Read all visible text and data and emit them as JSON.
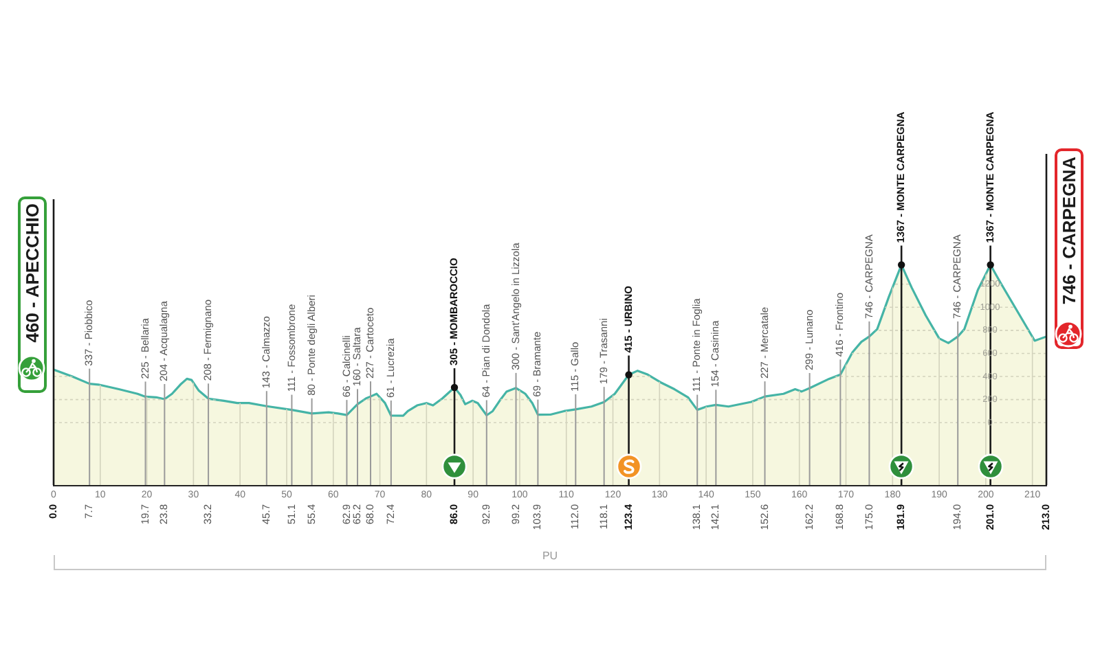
{
  "chart_data": {
    "type": "area",
    "color": "#45b4a6",
    "x": [
      0,
      4,
      7.7,
      9.6,
      14,
      18,
      19.7,
      22,
      23.8,
      25.4,
      27.2,
      28.6,
      29.6,
      31.1,
      33.2,
      36.5,
      39.4,
      41.9,
      45.7,
      51.1,
      55.4,
      59,
      61,
      62.9,
      65.2,
      67,
      68,
      69.3,
      71.1,
      72.4,
      75,
      76,
      78,
      80,
      81.4,
      83.4,
      86,
      87.3,
      88.3,
      89.8,
      91,
      92.9,
      94.2,
      95.7,
      97.2,
      99.2,
      101.2,
      102.7,
      103.9,
      106.6,
      109.5,
      112,
      115.4,
      118.1,
      120.4,
      123.4,
      125.3,
      127.3,
      130.2,
      133.2,
      136.1,
      138.1,
      140.1,
      142.1,
      144.8,
      149.7,
      152.6,
      156.6,
      159.1,
      160.5,
      162.2,
      166.4,
      168.8,
      171.4,
      173.3,
      175,
      176.7,
      179.2,
      181.9,
      184.1,
      187.1,
      190,
      192,
      194,
      195.4,
      198.3,
      201,
      203.2,
      206.7,
      210.5,
      213
    ],
    "values": [
      460,
      400,
      337,
      330,
      290,
      250,
      225,
      220,
      204,
      250,
      330,
      380,
      370,
      280,
      208,
      190,
      170,
      170,
      143,
      111,
      80,
      90,
      80,
      66,
      160,
      210,
      227,
      250,
      170,
      61,
      60,
      100,
      150,
      170,
      150,
      210,
      305,
      240,
      160,
      190,
      170,
      64,
      100,
      190,
      270,
      300,
      250,
      170,
      69,
      70,
      100,
      115,
      140,
      179,
      250,
      415,
      450,
      420,
      350,
      290,
      220,
      111,
      140,
      154,
      140,
      180,
      227,
      250,
      290,
      270,
      299,
      380,
      416,
      610,
      700,
      746,
      810,
      1090,
      1367,
      1170,
      930,
      730,
      690,
      746,
      810,
      1150,
      1367,
      1210,
      970,
      710,
      746
    ],
    "xlim": [
      0,
      213
    ],
    "xticks": [
      0,
      10,
      20,
      30,
      40,
      50,
      60,
      70,
      80,
      90,
      100,
      110,
      120,
      130,
      140,
      150,
      160,
      170,
      180,
      190,
      200,
      210
    ],
    "ylim": [
      -540,
      1400
    ],
    "yticks": [
      0,
      200,
      400,
      600,
      800,
      1000,
      1200
    ],
    "grid": true,
    "legend": false,
    "bands": [
      {
        "axis": "y",
        "from": -540,
        "to": 0,
        "color": "#f6f7df"
      }
    ],
    "ref_lines": [
      {
        "axis": "x",
        "value": 0,
        "label": "0.0",
        "color": "#1a1a1a"
      },
      {
        "axis": "x",
        "value": 7.7,
        "label": "7.7",
        "color": "#9a9a9a"
      },
      {
        "axis": "x",
        "value": 19.7,
        "label": "19.7",
        "color": "#9a9a9a"
      },
      {
        "axis": "x",
        "value": 23.8,
        "label": "23.8",
        "color": "#9a9a9a"
      },
      {
        "axis": "x",
        "value": 33.2,
        "label": "33.2",
        "color": "#9a9a9a"
      },
      {
        "axis": "x",
        "value": 45.7,
        "label": "45.7",
        "color": "#9a9a9a"
      },
      {
        "axis": "x",
        "value": 51.1,
        "label": "51.1",
        "color": "#9a9a9a"
      },
      {
        "axis": "x",
        "value": 55.4,
        "label": "55.4",
        "color": "#9a9a9a"
      },
      {
        "axis": "x",
        "value": 62.9,
        "label": "62.9",
        "color": "#9a9a9a"
      },
      {
        "axis": "x",
        "value": 65.2,
        "label": "65.2",
        "color": "#9a9a9a"
      },
      {
        "axis": "x",
        "value": 68.0,
        "label": "68.0",
        "color": "#9a9a9a"
      },
      {
        "axis": "x",
        "value": 72.4,
        "label": "72.4",
        "color": "#9a9a9a"
      },
      {
        "axis": "x",
        "value": 86.0,
        "label": "86.0",
        "color": "#1a1a1a"
      },
      {
        "axis": "x",
        "value": 92.9,
        "label": "92.9",
        "color": "#9a9a9a"
      },
      {
        "axis": "x",
        "value": 99.2,
        "label": "99.2",
        "color": "#9a9a9a"
      },
      {
        "axis": "x",
        "value": 103.9,
        "label": "103.9",
        "color": "#9a9a9a"
      },
      {
        "axis": "x",
        "value": 112.0,
        "label": "112.0",
        "color": "#9a9a9a"
      },
      {
        "axis": "x",
        "value": 118.1,
        "label": "118.1",
        "color": "#9a9a9a"
      },
      {
        "axis": "x",
        "value": 123.4,
        "label": "123.4",
        "color": "#1a1a1a"
      },
      {
        "axis": "x",
        "value": 138.1,
        "label": "138.1",
        "color": "#9a9a9a"
      },
      {
        "axis": "x",
        "value": 142.1,
        "label": "142.1",
        "color": "#9a9a9a"
      },
      {
        "axis": "x",
        "value": 152.6,
        "label": "152.6",
        "color": "#9a9a9a"
      },
      {
        "axis": "x",
        "value": 162.2,
        "label": "162.2",
        "color": "#9a9a9a"
      },
      {
        "axis": "x",
        "value": 168.8,
        "label": "168.8",
        "color": "#9a9a9a"
      },
      {
        "axis": "x",
        "value": 175.0,
        "label": "175.0",
        "color": "#9a9a9a"
      },
      {
        "axis": "x",
        "value": 181.9,
        "label": "181.9",
        "color": "#1a1a1a"
      },
      {
        "axis": "x",
        "value": 194.0,
        "label": "194.0",
        "color": "#9a9a9a"
      },
      {
        "axis": "x",
        "value": 201.0,
        "label": "201.0",
        "color": "#1a1a1a"
      },
      {
        "axis": "x",
        "value": 213,
        "label": "213.0",
        "color": "#1a1a1a"
      }
    ],
    "annotations": [
      {
        "text": "460 - APECCHIO",
        "x": 0,
        "y": 460
      },
      {
        "text": "337 - Piobbico",
        "x": 7.7,
        "y": 337
      },
      {
        "text": "225 - Bellaria",
        "x": 19.7,
        "y": 225
      },
      {
        "text": "204 - Acqualagna",
        "x": 23.8,
        "y": 204
      },
      {
        "text": "208 - Fermignano",
        "x": 33.2,
        "y": 208
      },
      {
        "text": "143 - Calmazzo",
        "x": 45.7,
        "y": 143
      },
      {
        "text": "111 - Fossombrone",
        "x": 51.1,
        "y": 111
      },
      {
        "text": "80 - Ponte degli Alberi",
        "x": 55.4,
        "y": 80
      },
      {
        "text": "66 - Calcinelli",
        "x": 62.9,
        "y": 66
      },
      {
        "text": "160 - Saltara",
        "x": 65.2,
        "y": 160
      },
      {
        "text": "227 - Cartoceto",
        "x": 68.0,
        "y": 227
      },
      {
        "text": "61 - Lucrezia",
        "x": 72.4,
        "y": 61
      },
      {
        "text": "305 - MOMBAROCCIO",
        "x": 86.0,
        "y": 305
      },
      {
        "text": "64 - Pian di Dondola",
        "x": 92.9,
        "y": 64
      },
      {
        "text": "300 - Sant'Angelo in Lizzola",
        "x": 99.2,
        "y": 300
      },
      {
        "text": "69 - Bramante",
        "x": 103.9,
        "y": 69
      },
      {
        "text": "115 - Gallo",
        "x": 112.0,
        "y": 115
      },
      {
        "text": "179 - Trasanni",
        "x": 118.1,
        "y": 179
      },
      {
        "text": "415 - URBINO",
        "x": 123.4,
        "y": 415
      },
      {
        "text": "111 - Ponte in Foglia",
        "x": 138.1,
        "y": 111
      },
      {
        "text": "154 - Casinina",
        "x": 142.1,
        "y": 154
      },
      {
        "text": "227 - Mercatale",
        "x": 152.6,
        "y": 227
      },
      {
        "text": "299 - Lunano",
        "x": 162.2,
        "y": 299
      },
      {
        "text": "416 - Frontino",
        "x": 168.8,
        "y": 416
      },
      {
        "text": "746 - CARPEGNA",
        "x": 175.0,
        "y": 746
      },
      {
        "text": "1367 - MONTE CARPEGNA",
        "x": 181.9,
        "y": 1367
      },
      {
        "text": "746 - CARPEGNA",
        "x": 194.0,
        "y": 746
      },
      {
        "text": "1367 - MONTE CARPEGNA",
        "x": 201.0,
        "y": 1367
      },
      {
        "text": "746 - CARPEGNA",
        "x": 213,
        "y": 746
      },
      "PU"
    ]
  }
}
